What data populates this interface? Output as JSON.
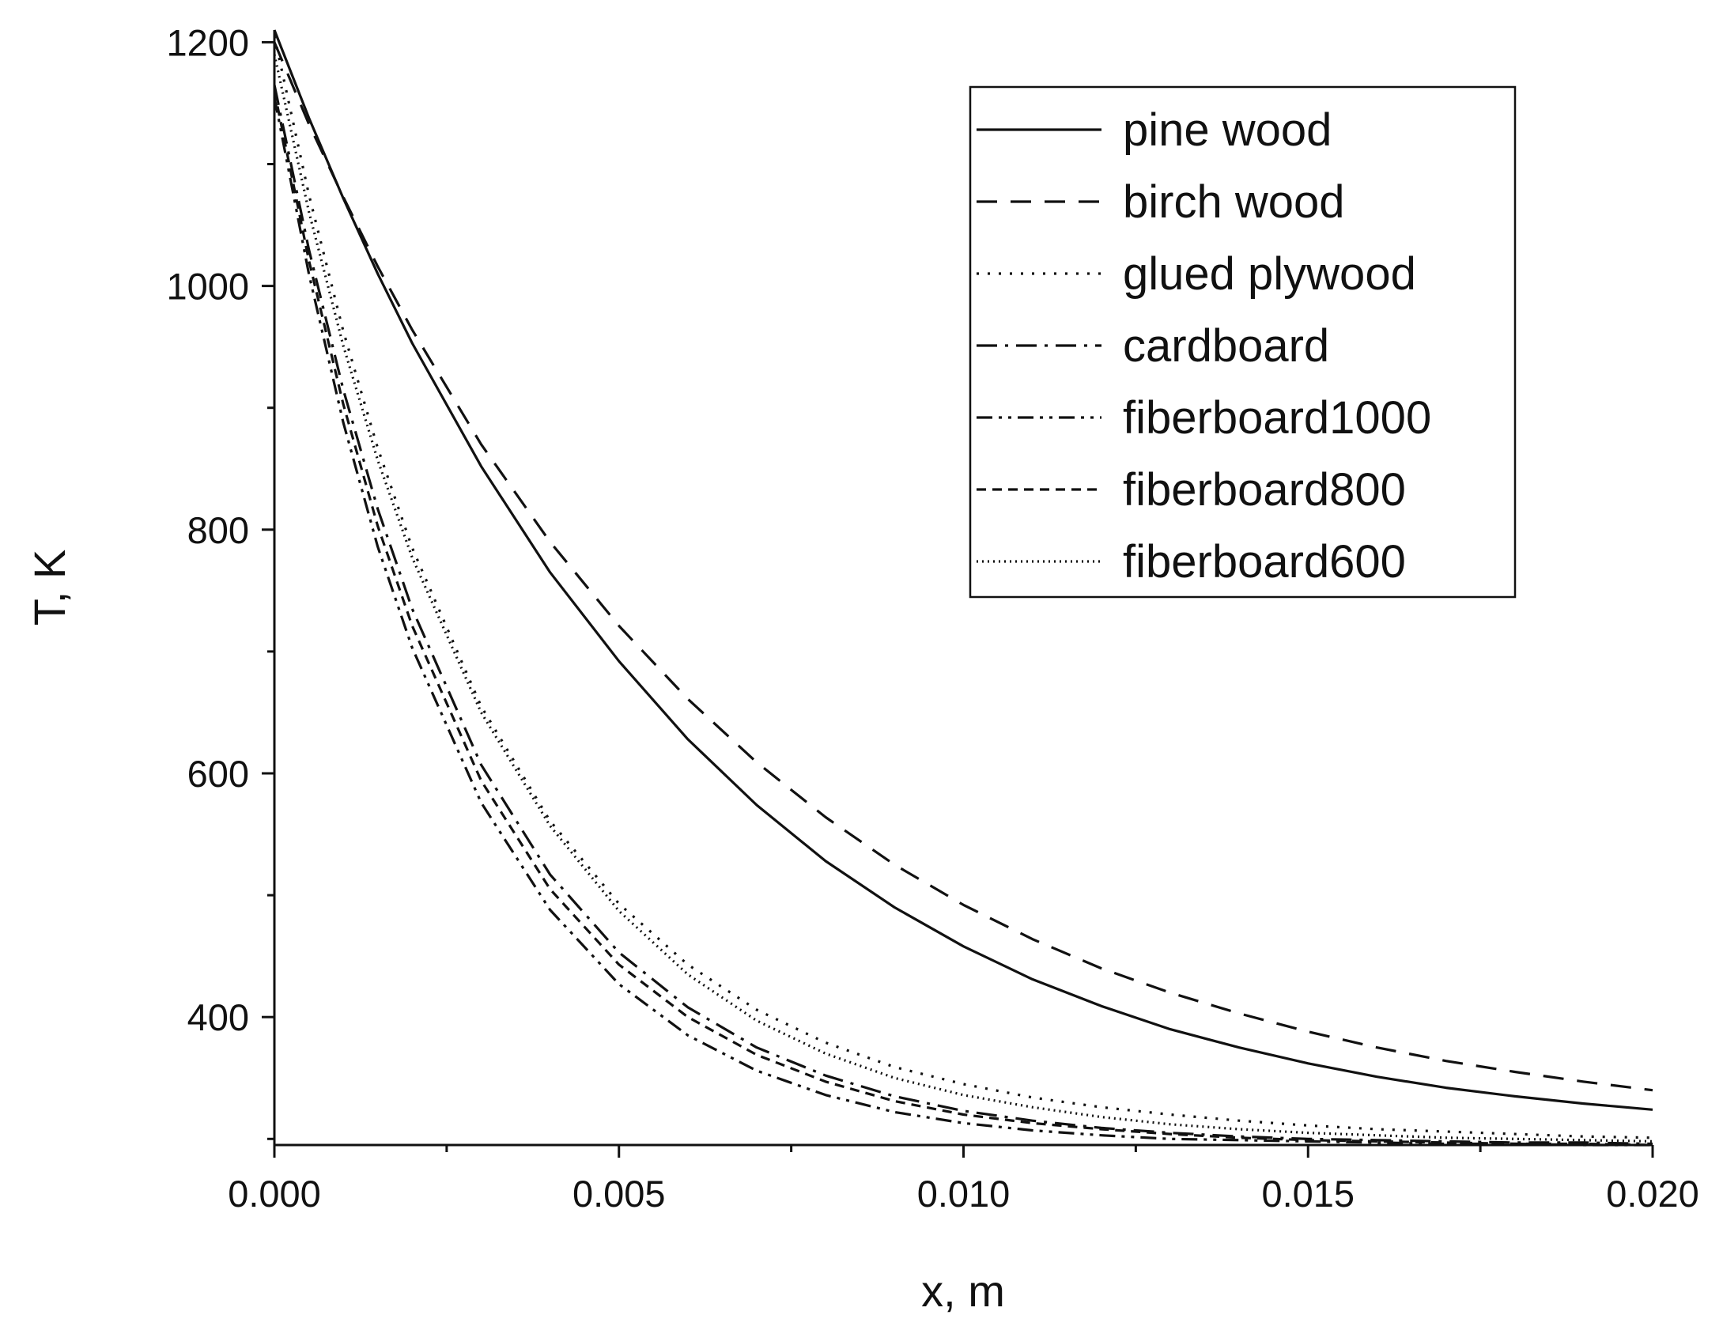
{
  "chart_data": {
    "type": "line",
    "xlabel": "x, m",
    "ylabel": "T, K",
    "xlim": [
      0,
      0.02
    ],
    "ylim": [
      295,
      1210
    ],
    "x_ticks": [
      0,
      0.005,
      0.01,
      0.015,
      0.02
    ],
    "x_tick_labels": [
      "0.000",
      "0.005",
      "0.010",
      "0.015",
      "0.020"
    ],
    "x_minor_ticks": [
      0.0025,
      0.0075,
      0.0125,
      0.0175
    ],
    "y_ticks": [
      400,
      600,
      800,
      1000,
      1200
    ],
    "y_tick_labels": [
      "400",
      "600",
      "800",
      "1000",
      "1200"
    ],
    "y_minor_ticks": [
      300,
      500,
      700,
      900,
      1100
    ],
    "grid": false,
    "legend_position": "top-right",
    "series": [
      {
        "name": "pine wood",
        "style": "solid",
        "x": [
          0,
          0.0005,
          0.001,
          0.0015,
          0.002,
          0.003,
          0.004,
          0.005,
          0.006,
          0.007,
          0.008,
          0.009,
          0.01,
          0.011,
          0.012,
          0.013,
          0.014,
          0.015,
          0.016,
          0.017,
          0.018,
          0.019,
          0.02
        ],
        "y": [
          1210,
          1138,
          1072,
          1010,
          953,
          852,
          765,
          692,
          628,
          574,
          528,
          490,
          458,
          431,
          409,
          390,
          375,
          362,
          351,
          342,
          335,
          329,
          324
        ]
      },
      {
        "name": "birch wood",
        "style": "long-dash",
        "x": [
          0,
          0.0005,
          0.001,
          0.0015,
          0.002,
          0.003,
          0.004,
          0.005,
          0.006,
          0.007,
          0.008,
          0.009,
          0.01,
          0.011,
          0.012,
          0.013,
          0.014,
          0.015,
          0.016,
          0.017,
          0.018,
          0.019,
          0.02
        ],
        "y": [
          1200,
          1133,
          1073,
          1016,
          964,
          870,
          790,
          721,
          661,
          609,
          564,
          525,
          492,
          464,
          440,
          420,
          403,
          388,
          375,
          364,
          355,
          347,
          340
        ]
      },
      {
        "name": "glued plywood",
        "style": "dotted",
        "x": [
          0,
          0.0005,
          0.001,
          0.0015,
          0.002,
          0.003,
          0.004,
          0.005,
          0.006,
          0.007,
          0.008,
          0.009,
          0.01,
          0.011,
          0.012,
          0.013,
          0.014,
          0.015,
          0.016,
          0.017,
          0.018,
          0.019,
          0.02
        ],
        "y": [
          1205,
          1075,
          963,
          867,
          785,
          655,
          561,
          493,
          443,
          406,
          379,
          359,
          345,
          334,
          326,
          320,
          315,
          311,
          308,
          306,
          304,
          302,
          301
        ]
      },
      {
        "name": "cardboard",
        "style": "dash-dot",
        "x": [
          0,
          0.0005,
          0.001,
          0.0015,
          0.002,
          0.003,
          0.004,
          0.005,
          0.006,
          0.007,
          0.008,
          0.009,
          0.01,
          0.011,
          0.012,
          0.013,
          0.014,
          0.015,
          0.016,
          0.017,
          0.018,
          0.019,
          0.02
        ],
        "y": [
          1165,
          1030,
          915,
          817,
          735,
          607,
          517,
          453,
          408,
          375,
          352,
          335,
          323,
          315,
          309,
          305,
          302,
          300,
          299,
          298,
          297,
          297,
          296
        ]
      },
      {
        "name": "fiberboard1000",
        "style": "dash-dot-dot",
        "x": [
          0,
          0.0005,
          0.001,
          0.0015,
          0.002,
          0.003,
          0.004,
          0.005,
          0.006,
          0.007,
          0.008,
          0.009,
          0.01,
          0.011,
          0.012,
          0.013,
          0.014,
          0.015,
          0.016,
          0.017,
          0.018,
          0.019,
          0.02
        ],
        "y": [
          1155,
          1010,
          888,
          786,
          703,
          576,
          488,
          427,
          385,
          356,
          336,
          322,
          313,
          307,
          303,
          300,
          299,
          298,
          297,
          296,
          296,
          295,
          295
        ]
      },
      {
        "name": "fiberboard800",
        "style": "short-dash",
        "x": [
          0,
          0.0005,
          0.001,
          0.0015,
          0.002,
          0.003,
          0.004,
          0.005,
          0.006,
          0.007,
          0.008,
          0.009,
          0.01,
          0.011,
          0.012,
          0.013,
          0.014,
          0.015,
          0.016,
          0.017,
          0.018,
          0.019,
          0.02
        ],
        "y": [
          1160,
          1021,
          903,
          803,
          721,
          594,
          505,
          443,
          400,
          369,
          347,
          331,
          320,
          313,
          308,
          304,
          301,
          299,
          298,
          297,
          296,
          296,
          295
        ]
      },
      {
        "name": "fiberboard600",
        "style": "fine-dot",
        "x": [
          0,
          0.0005,
          0.001,
          0.0015,
          0.002,
          0.003,
          0.004,
          0.005,
          0.006,
          0.007,
          0.008,
          0.009,
          0.01,
          0.011,
          0.012,
          0.013,
          0.014,
          0.015,
          0.016,
          0.017,
          0.018,
          0.019,
          0.02
        ],
        "y": [
          1190,
          1061,
          951,
          857,
          777,
          650,
          557,
          487,
          435,
          397,
          370,
          350,
          336,
          326,
          318,
          312,
          308,
          305,
          303,
          301,
          300,
          299,
          298
        ]
      }
    ]
  }
}
